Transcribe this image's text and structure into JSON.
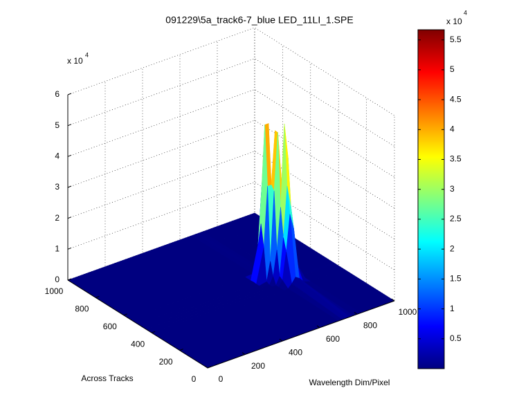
{
  "chart_data": {
    "type": "surface",
    "title": "091229\\5a_track6-7_blue LED_11LI_1.SPE",
    "xlabel": "Wavelength Dim/Pixel",
    "ylabel": "Across Tracks",
    "z_multiplier": "x 10",
    "z_exponent": "4",
    "colorbar_multiplier": "x 10",
    "colorbar_exponent": "4",
    "x": [
      0,
      620,
      660,
      680,
      700,
      720,
      740,
      760,
      780,
      820,
      1000
    ],
    "y": [
      0,
      360,
      400,
      420,
      440,
      460,
      480,
      500,
      520,
      560,
      1000
    ],
    "z": [
      [
        0,
        0,
        0,
        0,
        0,
        0,
        0,
        0,
        0,
        0,
        0
      ],
      [
        0,
        0,
        0,
        0,
        0.02,
        0.14,
        0.31,
        0.23,
        0.07,
        0,
        0
      ],
      [
        0,
        0,
        0,
        0,
        0.18,
        1.06,
        2.23,
        1.73,
        0.5,
        0,
        0
      ],
      [
        0,
        0,
        0,
        0,
        0.25,
        1.46,
        3.08,
        2.38,
        0.7,
        0.02,
        0
      ],
      [
        0,
        0,
        0,
        0.23,
        1.05,
        2.39,
        5.04,
        3.9,
        1.14,
        0.01,
        0
      ],
      [
        0,
        0,
        0.05,
        0.67,
        2.9,
        4.75,
        3.08,
        2.38,
        0.7,
        0,
        0
      ],
      [
        0,
        0,
        1.1,
        3.04,
        3.04,
        4.75,
        2.9,
        0.64,
        0.05,
        0,
        0
      ],
      [
        0,
        0.01,
        1.81,
        4.97,
        4.97,
        1.81,
        1.05,
        0.23,
        0,
        0,
        0
      ],
      [
        0,
        0,
        1.1,
        3.04,
        3.04,
        1.1,
        0.15,
        0.01,
        0,
        0,
        0
      ],
      [
        0,
        0,
        0.02,
        0.05,
        0.05,
        0.02,
        0,
        0,
        0,
        0,
        0
      ],
      [
        0,
        0,
        0,
        0,
        0,
        0,
        0,
        0,
        0,
        0,
        0
      ]
    ],
    "xlim": [
      0,
      1000
    ],
    "xticks": [
      0,
      200,
      400,
      600,
      800,
      1000
    ],
    "ylim": [
      0,
      1000
    ],
    "yticks": [
      0,
      200,
      400,
      600,
      800,
      1000
    ],
    "zlim": [
      0,
      6
    ],
    "zticks": [
      0,
      1,
      2,
      3,
      4,
      5,
      6
    ],
    "clim": [
      0,
      5.67
    ],
    "cticks": [
      0.5,
      1,
      1.5,
      2,
      2.5,
      3,
      3.5,
      4,
      4.5,
      5,
      5.5
    ],
    "colormap": "jet",
    "grid": true
  }
}
